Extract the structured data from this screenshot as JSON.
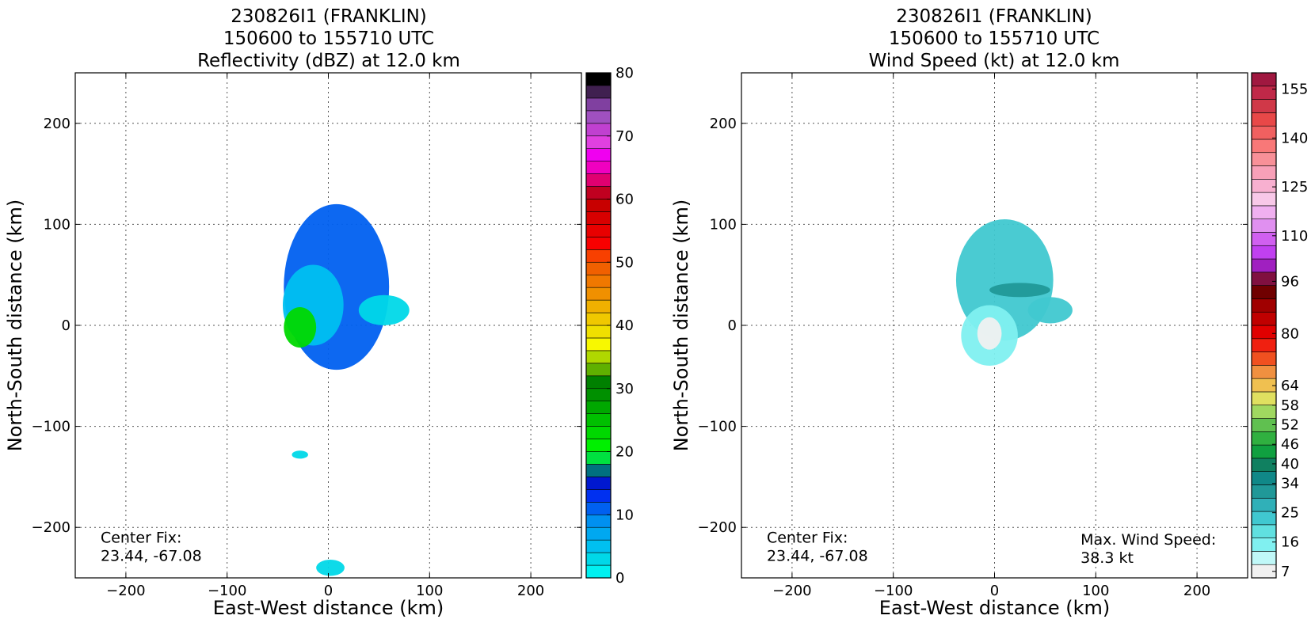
{
  "chart_data": [
    {
      "type": "heatmap",
      "title": [
        "230826I1 (FRANKLIN)",
        "150600 to 155710 UTC",
        "Reflectivity (dBZ) at 12.0 km"
      ],
      "xlabel": "East-West distance (km)",
      "ylabel": "North-South distance (km)",
      "xlim": [
        -250,
        250
      ],
      "ylim": [
        -250,
        250
      ],
      "xticks": [
        -200,
        -100,
        0,
        100,
        200
      ],
      "yticks": [
        -200,
        -100,
        0,
        100,
        200
      ],
      "xtick_labels": [
        "−200",
        "−100",
        "0",
        "100",
        "200"
      ],
      "ytick_labels": [
        "−200",
        "−100",
        "0",
        "100",
        "200"
      ],
      "grid": true,
      "colorbar": {
        "min": 0,
        "max": 80,
        "ticks": [
          0,
          10,
          20,
          30,
          40,
          50,
          60,
          70,
          80
        ],
        "tick_labels": [
          "0",
          "10",
          "20",
          "30",
          "40",
          "50",
          "60",
          "70",
          "80"
        ],
        "colors": [
          "#00f0f0",
          "#00d8e8",
          "#00c0f0",
          "#00a8f0",
          "#0090f0",
          "#0060f0",
          "#0030f0",
          "#0018d0",
          "#007080",
          "#00e040",
          "#00f000",
          "#00d800",
          "#00c000",
          "#00a800",
          "#009000",
          "#008000",
          "#60b000",
          "#b0d800",
          "#f8f800",
          "#f0e000",
          "#f0c800",
          "#f0b000",
          "#f09000",
          "#f07800",
          "#f06000",
          "#f84000",
          "#f80000",
          "#e80000",
          "#d80000",
          "#c80000",
          "#c00020",
          "#e00070",
          "#f000c0",
          "#f000f0",
          "#e040e0",
          "#c040d0",
          "#a050c0",
          "#8040a0",
          "#402050",
          "#000000"
        ]
      },
      "blobs": [
        {
          "name": "main-echo",
          "x": 8,
          "y": 38,
          "rx": 52,
          "ry": 82,
          "value": 10
        },
        {
          "name": "inner-echo",
          "x": -15,
          "y": 20,
          "rx": 30,
          "ry": 40,
          "value": 5
        },
        {
          "name": "core-echo",
          "x": -28,
          "y": -2,
          "rx": 16,
          "ry": 20,
          "value": 22
        },
        {
          "name": "east-echo",
          "x": 55,
          "y": 15,
          "rx": 25,
          "ry": 15,
          "value": 3
        },
        {
          "name": "south-echo-1",
          "x": -28,
          "y": -128,
          "rx": 8,
          "ry": 4,
          "value": 3
        },
        {
          "name": "south-echo-2",
          "x": 2,
          "y": -240,
          "rx": 14,
          "ry": 8,
          "value": 3
        }
      ],
      "annotations": [
        {
          "text": [
            "Center Fix:",
            "23.44, -67.08"
          ],
          "x": -225,
          "y": -215
        }
      ]
    },
    {
      "type": "heatmap",
      "title": [
        "230826I1 (FRANKLIN)",
        "150600 to 155710 UTC",
        "Wind Speed (kt) at 12.0 km"
      ],
      "xlabel": "East-West distance (km)",
      "ylabel": "North-South distance (km)",
      "xlim": [
        -250,
        250
      ],
      "ylim": [
        -250,
        250
      ],
      "xticks": [
        -200,
        -100,
        0,
        100,
        200
      ],
      "yticks": [
        -200,
        -100,
        0,
        100,
        200
      ],
      "xtick_labels": [
        "−200",
        "−100",
        "0",
        "100",
        "200"
      ],
      "ytick_labels": [
        "−200",
        "−100",
        "0",
        "100",
        "200"
      ],
      "grid": true,
      "colorbar": {
        "min": 5,
        "max": 160,
        "ticks": [
          7,
          16,
          25,
          34,
          40,
          46,
          52,
          58,
          64,
          80,
          96,
          110,
          125,
          140,
          155
        ],
        "tick_labels": [
          "7",
          "16",
          "25",
          "34",
          "40",
          "46",
          "52",
          "58",
          "64",
          "80",
          "96",
          "110",
          "125",
          "140",
          "155"
        ],
        "colors": [
          "#f0f0f0",
          "#c0f8f8",
          "#80f0f0",
          "#60e0e0",
          "#40c8d0",
          "#30b0b8",
          "#209898",
          "#108888",
          "#108060",
          "#10a040",
          "#30b040",
          "#60c050",
          "#a0d860",
          "#e0e060",
          "#f0c050",
          "#f09040",
          "#f05020",
          "#f02010",
          "#e00000",
          "#c00000",
          "#a00000",
          "#700000",
          "#801040",
          "#a020c0",
          "#c040f0",
          "#d060f0",
          "#e090f0",
          "#f0b0f0",
          "#f8c8e8",
          "#f8b0d0",
          "#f8a0b8",
          "#f89098",
          "#f87878",
          "#f06060",
          "#e84848",
          "#d03848",
          "#c02848",
          "#a01840"
        ]
      },
      "blobs": [
        {
          "name": "main-wind",
          "x": 10,
          "y": 45,
          "rx": 48,
          "ry": 60,
          "value": 24
        },
        {
          "name": "inner-wind",
          "x": -5,
          "y": -10,
          "rx": 28,
          "ry": 30,
          "value": 15
        },
        {
          "name": "core-wind",
          "x": -5,
          "y": -8,
          "rx": 12,
          "ry": 16,
          "value": 9
        },
        {
          "name": "band-wind",
          "x": 25,
          "y": 35,
          "rx": 30,
          "ry": 7,
          "value": 33
        },
        {
          "name": "east-wind",
          "x": 55,
          "y": 15,
          "rx": 22,
          "ry": 13,
          "value": 24
        }
      ],
      "annotations": [
        {
          "text": [
            "Center Fix:",
            "23.44, -67.08"
          ],
          "x": -225,
          "y": -215
        },
        {
          "text": [
            "Max. Wind Speed:",
            "38.3 kt"
          ],
          "x": 85,
          "y": -217
        }
      ]
    }
  ]
}
